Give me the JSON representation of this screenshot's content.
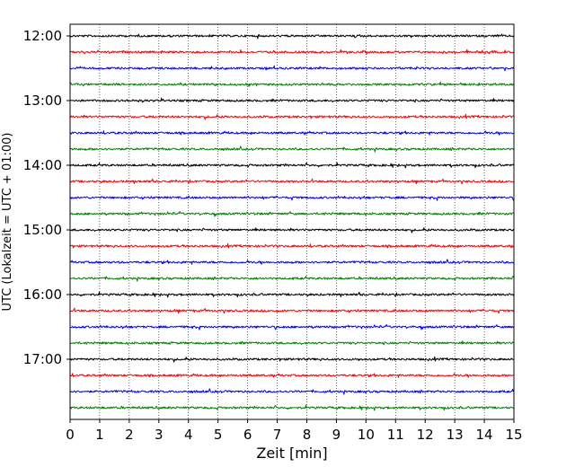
{
  "chart_data": {
    "type": "line",
    "title": "",
    "xlabel": "Zeit  [min]",
    "ylabel": "UTC (Lokalzeit = UTC + 01:00)",
    "xlim": [
      0,
      15
    ],
    "x_ticks": [
      "0",
      "1",
      "2",
      "3",
      "4",
      "5",
      "6",
      "7",
      "8",
      "9",
      "10",
      "11",
      "12",
      "13",
      "14",
      "15"
    ],
    "y_ticks": [
      "12:00",
      "13:00",
      "14:00",
      "15:00",
      "16:00",
      "17:00"
    ],
    "traces_per_hour": 4,
    "trace_minutes": 15,
    "grid": "vertical dotted lines at each minute",
    "series": [
      {
        "start": "12:00",
        "color": "#000000"
      },
      {
        "start": "12:15",
        "color": "#ff0000"
      },
      {
        "start": "12:30",
        "color": "#0000ff"
      },
      {
        "start": "12:45",
        "color": "#008000"
      },
      {
        "start": "13:00",
        "color": "#000000"
      },
      {
        "start": "13:15",
        "color": "#ff0000"
      },
      {
        "start": "13:30",
        "color": "#0000ff"
      },
      {
        "start": "13:45",
        "color": "#008000"
      },
      {
        "start": "14:00",
        "color": "#000000"
      },
      {
        "start": "14:15",
        "color": "#ff0000"
      },
      {
        "start": "14:30",
        "color": "#0000ff"
      },
      {
        "start": "14:45",
        "color": "#008000"
      },
      {
        "start": "15:00",
        "color": "#000000"
      },
      {
        "start": "15:15",
        "color": "#ff0000"
      },
      {
        "start": "15:30",
        "color": "#0000ff"
      },
      {
        "start": "15:45",
        "color": "#008000"
      },
      {
        "start": "16:00",
        "color": "#000000"
      },
      {
        "start": "16:15",
        "color": "#ff0000"
      },
      {
        "start": "16:30",
        "color": "#0000ff"
      },
      {
        "start": "16:45",
        "color": "#008000"
      },
      {
        "start": "17:00",
        "color": "#000000"
      },
      {
        "start": "17:15",
        "color": "#ff0000"
      },
      {
        "start": "17:30",
        "color": "#0000ff"
      },
      {
        "start": "17:45",
        "color": "#008000"
      }
    ]
  }
}
